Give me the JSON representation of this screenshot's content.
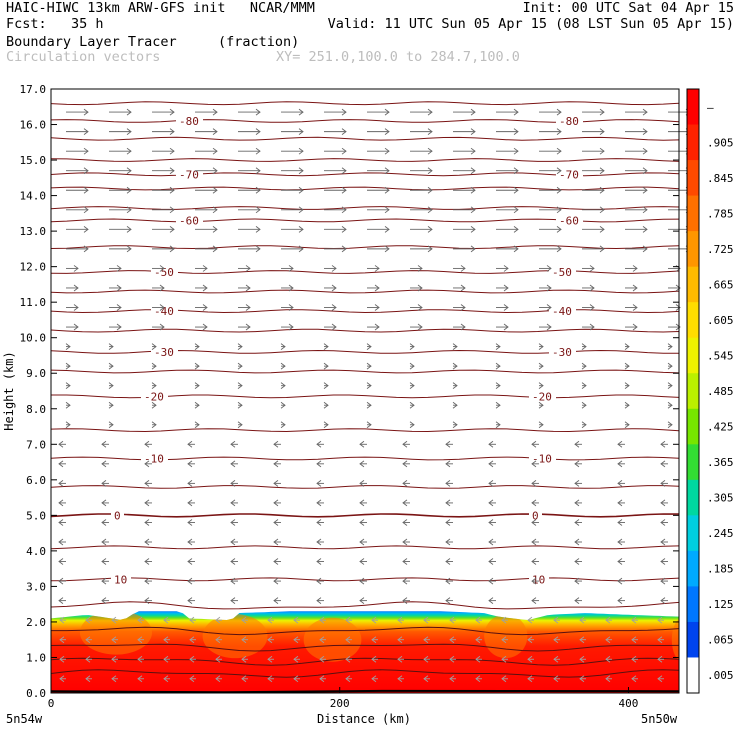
{
  "header": {
    "line1_left": "HAIC-HIWC 13km ARW-GFS init   NCAR/MMM",
    "line1_right": "Init: 00 UTC Sat 04 Apr 15",
    "line2_left": "Fcst:   35 h",
    "line2_right": "Valid: 11 UTC Sun 05 Apr 15 (08 LST Sun 05 Apr 15)",
    "line3_left": "Boundary Layer Tracer",
    "line3_mid": "(fraction)",
    "line4_left": "Circulation vectors",
    "line4_mid": "XY= 251.0,100.0 to 284.7,100.0"
  },
  "chart_data": {
    "type": "heatmap",
    "title": "Boundary Layer Tracer",
    "units": "(fraction)",
    "xlabel": "Distance (km)",
    "ylabel": "Height (km)",
    "xlim": [
      0,
      435
    ],
    "ylim": [
      0.0,
      17.0
    ],
    "x_ticks": [
      0,
      200,
      400
    ],
    "y_ticks": [
      "0.0",
      "1.0",
      "2.0",
      "3.0",
      "4.0",
      "5.0",
      "6.0",
      "7.0",
      "8.0",
      "9.0",
      "10.0",
      "11.0",
      "12.0",
      "13.0",
      "14.0",
      "15.0",
      "16.0",
      "17.0"
    ],
    "x_end_labels": {
      "left": "5n54w",
      "right": "5n50w"
    },
    "colorbar": {
      "labels": [
        "–",
        ".905",
        ".845",
        ".785",
        ".725",
        ".665",
        ".605",
        ".545",
        ".485",
        ".425",
        ".365",
        ".305",
        ".245",
        ".185",
        ".125",
        ".065",
        ".005"
      ],
      "colors": [
        "#ff0000",
        "#ff2200",
        "#ff4a00",
        "#ff7000",
        "#ff9600",
        "#ffbb00",
        "#ffdd00",
        "#eef200",
        "#bbf000",
        "#77e600",
        "#33dd33",
        "#00d8a0",
        "#00cfe0",
        "#00aaff",
        "#0077ff",
        "#0044ee",
        "#ffffff"
      ]
    },
    "tracer_top_profile_km": [
      [
        0,
        2.1
      ],
      [
        25,
        2.2
      ],
      [
        50,
        2.05
      ],
      [
        60,
        2.3
      ],
      [
        90,
        2.3
      ],
      [
        95,
        2.1
      ],
      [
        125,
        2.05
      ],
      [
        130,
        2.25
      ],
      [
        165,
        2.3
      ],
      [
        200,
        2.3
      ],
      [
        240,
        2.3
      ],
      [
        270,
        2.3
      ],
      [
        300,
        2.25
      ],
      [
        310,
        2.15
      ],
      [
        330,
        2.05
      ],
      [
        345,
        2.2
      ],
      [
        370,
        2.25
      ],
      [
        400,
        2.2
      ],
      [
        435,
        2.15
      ]
    ],
    "temperature_contours_C": [
      {
        "label": "10",
        "height_km": 3.2
      },
      {
        "label": "0",
        "height_km": 5.0
      },
      {
        "label": "-10",
        "height_km": 6.6
      },
      {
        "label": "-20",
        "height_km": 8.35
      },
      {
        "label": "-30",
        "height_km": 9.6
      },
      {
        "label": "-40",
        "height_km": 10.75
      },
      {
        "label": "-50",
        "height_km": 11.85
      },
      {
        "label": "-60",
        "height_km": 13.3
      },
      {
        "label": "-70",
        "height_km": 14.6
      },
      {
        "label": "-80",
        "height_km": 16.1
      }
    ],
    "extra_isotherm_heights_km": [
      0.55,
      0.9,
      1.3,
      1.75,
      2.45,
      4.1,
      5.8,
      7.4,
      9.05,
      10.2,
      11.3,
      12.55,
      13.65,
      14.2,
      15.0,
      15.6,
      16.6
    ]
  }
}
